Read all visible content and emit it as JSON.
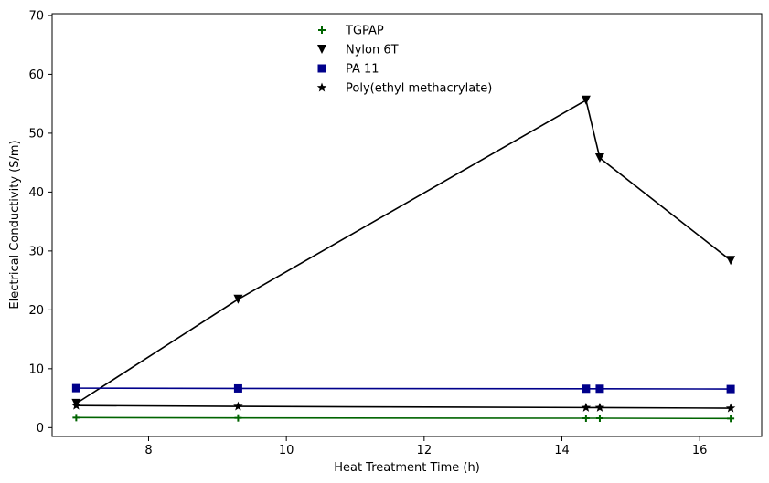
{
  "chart_data": {
    "type": "line",
    "title": "",
    "xlabel": "Heat Treatment Time (h)",
    "ylabel": "Electrical Conductivity (S/m)",
    "xlim": [
      6.6,
      16.9
    ],
    "ylim": [
      -1.5,
      70.3
    ],
    "xticks": [
      8,
      10,
      12,
      14,
      16
    ],
    "yticks": [
      0,
      10,
      20,
      30,
      40,
      50,
      60,
      70
    ],
    "grid": false,
    "legend_position": "top-center",
    "x": [
      6.95,
      9.3,
      14.35,
      14.55,
      16.45
    ],
    "series": [
      {
        "name": "TGPAP",
        "marker": "plus",
        "color": "#006400",
        "values": [
          1.7,
          1.65,
          1.6,
          1.6,
          1.55
        ]
      },
      {
        "name": "Nylon 6T",
        "marker": "triangle-down",
        "color": "#000000",
        "values": [
          4.1,
          21.8,
          55.6,
          45.8,
          28.4
        ]
      },
      {
        "name": "PA 11",
        "marker": "square",
        "color": "#00008b",
        "values": [
          6.7,
          6.65,
          6.6,
          6.6,
          6.55
        ]
      },
      {
        "name": "Poly(ethyl methacrylate)",
        "marker": "star",
        "color": "#000000",
        "values": [
          3.75,
          3.6,
          3.4,
          3.4,
          3.3
        ]
      }
    ]
  }
}
